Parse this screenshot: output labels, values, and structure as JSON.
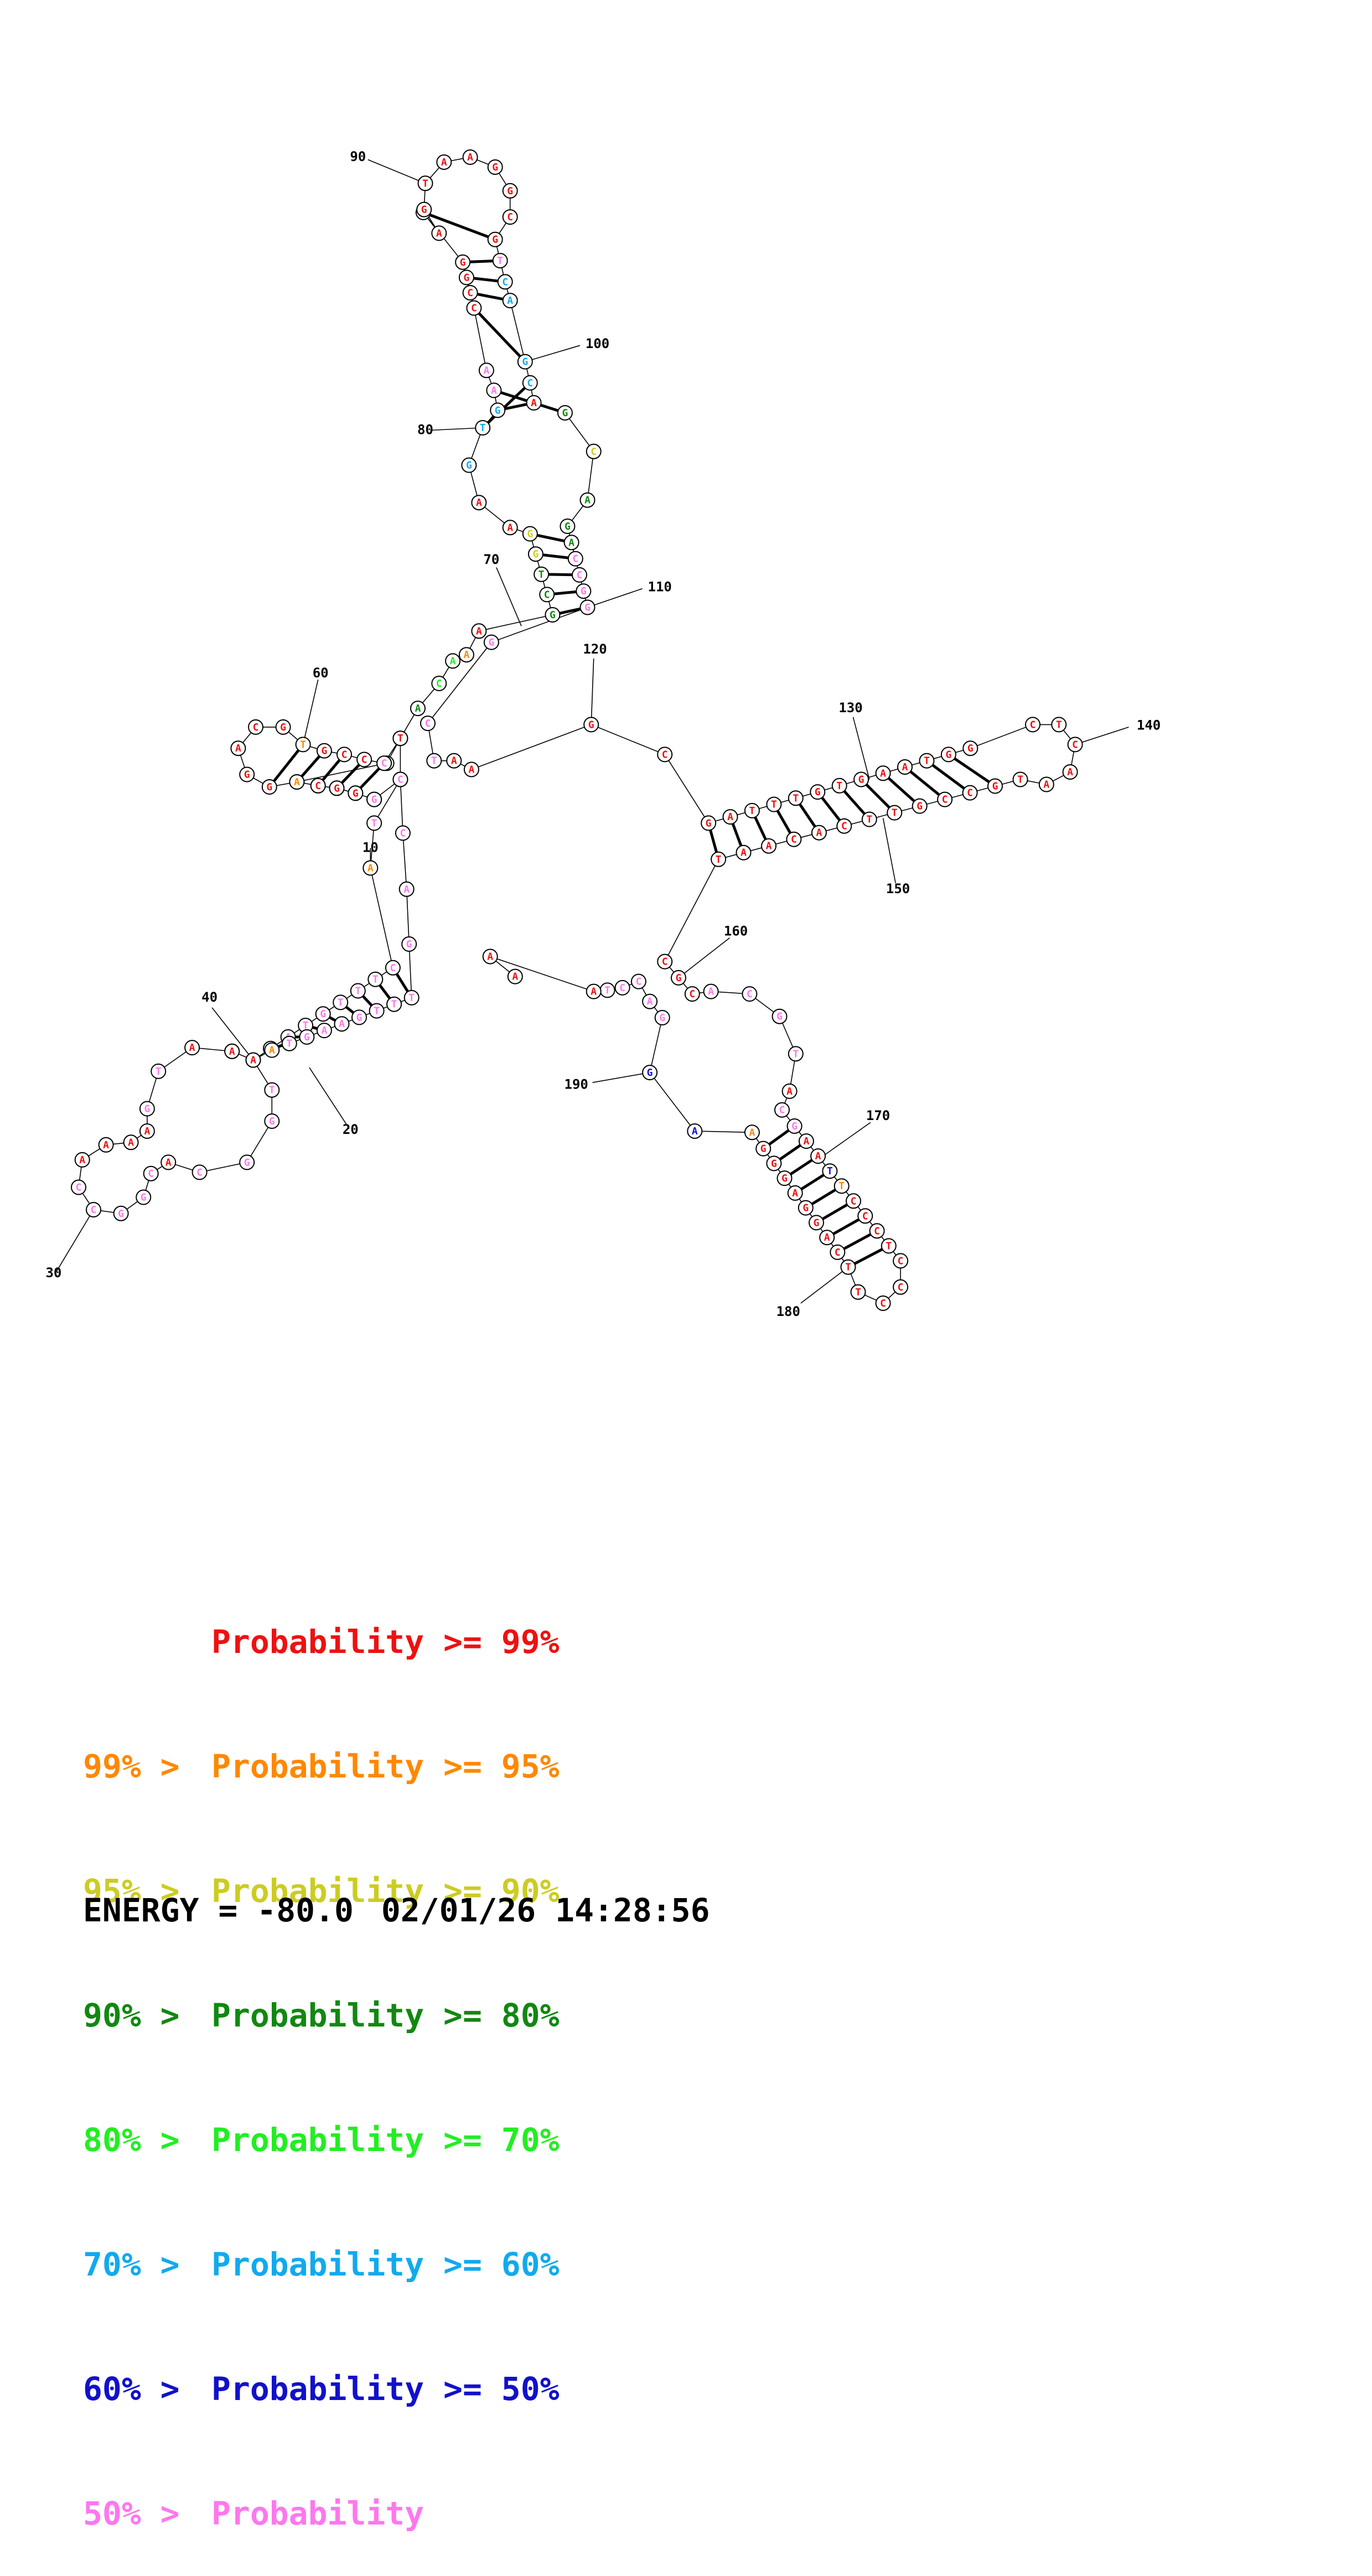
{
  "palette": {
    "red": "#ee1111",
    "orange": "#ff8800",
    "yellow": "#cccc22",
    "dkgreen": "#118811",
    "green": "#22ee22",
    "cyan": "#11aaee",
    "blue": "#1111cc",
    "pink": "#ff77ee"
  },
  "nucleotides": [
    {
      "b": "G",
      "c": "red"
    },
    {
      "b": "G",
      "c": "red"
    },
    {
      "b": "C",
      "c": "red"
    },
    {
      "b": "C",
      "c": "red"
    },
    {
      "b": "G",
      "c": "red"
    },
    {
      "b": "C",
      "c": "red"
    },
    {
      "b": "G",
      "c": "red"
    },
    {
      "b": "G",
      "c": "pink"
    },
    {
      "b": "T",
      "c": "pink"
    },
    {
      "b": "A",
      "c": "orange"
    },
    {
      "b": "C",
      "c": "pink"
    },
    {
      "b": "T",
      "c": "pink"
    },
    {
      "b": "T",
      "c": "pink"
    },
    {
      "b": "T",
      "c": "pink"
    },
    {
      "b": "G",
      "c": "pink"
    },
    {
      "b": "T",
      "c": "pink"
    },
    {
      "b": "A",
      "c": "pink"
    },
    {
      "b": "A",
      "c": "pink"
    },
    {
      "b": "T",
      "c": "pink"
    },
    {
      "b": "T",
      "c": "pink"
    },
    {
      "b": "G",
      "c": "pink"
    },
    {
      "b": "G",
      "c": "pink"
    },
    {
      "b": "C",
      "c": "pink"
    },
    {
      "b": "A",
      "c": "red"
    },
    {
      "b": "C",
      "c": "pink"
    },
    {
      "b": "G",
      "c": "pink"
    },
    {
      "b": "G",
      "c": "pink"
    },
    {
      "b": "C",
      "c": "pink"
    },
    {
      "b": "C",
      "c": "pink"
    },
    {
      "b": "A",
      "c": "red"
    },
    {
      "b": "A",
      "c": "red"
    },
    {
      "b": "A",
      "c": "red"
    },
    {
      "b": "A",
      "c": "red"
    },
    {
      "b": "G",
      "c": "pink"
    },
    {
      "b": "T",
      "c": "pink"
    },
    {
      "b": "A",
      "c": "red"
    },
    {
      "b": "A",
      "c": "red"
    },
    {
      "b": "A",
      "c": "red"
    },
    {
      "b": "A",
      "c": "red"
    },
    {
      "b": "A",
      "c": "orange"
    },
    {
      "b": "T",
      "c": "pink"
    },
    {
      "b": "G",
      "c": "pink"
    },
    {
      "b": "A",
      "c": "pink"
    },
    {
      "b": "A",
      "c": "pink"
    },
    {
      "b": "G",
      "c": "pink"
    },
    {
      "b": "T",
      "c": "pink"
    },
    {
      "b": "T",
      "c": "pink"
    },
    {
      "b": "T",
      "c": "pink"
    },
    {
      "b": "G",
      "c": "pink"
    },
    {
      "b": "A",
      "c": "pink"
    },
    {
      "b": "C",
      "c": "pink"
    },
    {
      "b": "C",
      "c": "pink"
    },
    {
      "b": "G",
      "c": "pink"
    },
    {
      "b": "G",
      "c": "red"
    },
    {
      "b": "G",
      "c": "red"
    },
    {
      "b": "C",
      "c": "red"
    },
    {
      "b": "A",
      "c": "orange"
    },
    {
      "b": "G",
      "c": "red"
    },
    {
      "b": "G",
      "c": "red"
    },
    {
      "b": "A",
      "c": "red"
    },
    {
      "b": "C",
      "c": "red"
    },
    {
      "b": "G",
      "c": "red"
    },
    {
      "b": "T",
      "c": "orange"
    },
    {
      "b": "G",
      "c": "red"
    },
    {
      "b": "C",
      "c": "red"
    },
    {
      "b": "C",
      "c": "red"
    },
    {
      "b": "C",
      "c": "pink"
    },
    {
      "b": "T",
      "c": "red"
    },
    {
      "b": "A",
      "c": "dkgreen"
    },
    {
      "b": "C",
      "c": "green"
    },
    {
      "b": "A",
      "c": "green"
    },
    {
      "b": "A",
      "c": "orange"
    },
    {
      "b": "A",
      "c": "red"
    },
    {
      "b": "G",
      "c": "dkgreen"
    },
    {
      "b": "C",
      "c": "dkgreen"
    },
    {
      "b": "T",
      "c": "dkgreen"
    },
    {
      "b": "G",
      "c": "yellow"
    },
    {
      "b": "G",
      "c": "yellow"
    },
    {
      "b": "A",
      "c": "red"
    },
    {
      "b": "A",
      "c": "red"
    },
    {
      "b": "G",
      "c": "cyan"
    },
    {
      "b": "T",
      "c": "cyan"
    },
    {
      "b": "G",
      "c": "cyan"
    },
    {
      "b": "A",
      "c": "pink"
    },
    {
      "b": "A",
      "c": "pink"
    },
    {
      "b": "C",
      "c": "red"
    },
    {
      "b": "C",
      "c": "red"
    },
    {
      "b": "G",
      "c": "red"
    },
    {
      "b": "G",
      "c": "red"
    },
    {
      "b": "C",
      "c": "red"
    },
    {
      "b": "A",
      "c": "red"
    },
    {
      "b": "G",
      "c": "red"
    },
    {
      "b": "T",
      "c": "red"
    },
    {
      "b": "A",
      "c": "red"
    },
    {
      "b": "A",
      "c": "red"
    },
    {
      "b": "G",
      "c": "red"
    },
    {
      "b": "G",
      "c": "red"
    },
    {
      "b": "C",
      "c": "red"
    },
    {
      "b": "G",
      "c": "red"
    },
    {
      "b": "T",
      "c": "pink"
    },
    {
      "b": "C",
      "c": "cyan"
    },
    {
      "b": "A",
      "c": "cyan"
    },
    {
      "b": "G",
      "c": "cyan"
    },
    {
      "b": "C",
      "c": "cyan"
    },
    {
      "b": "A",
      "c": "red"
    },
    {
      "b": "G",
      "c": "dkgreen"
    },
    {
      "b": "C",
      "c": "yellow"
    },
    {
      "b": "A",
      "c": "dkgreen"
    },
    {
      "b": "G",
      "c": "dkgreen"
    },
    {
      "b": "A",
      "c": "dkgreen"
    },
    {
      "b": "C",
      "c": "pink"
    },
    {
      "b": "C",
      "c": "pink"
    },
    {
      "b": "G",
      "c": "pink"
    },
    {
      "b": "G",
      "c": "pink"
    },
    {
      "b": "G",
      "c": "pink"
    },
    {
      "b": "C",
      "c": "pink"
    },
    {
      "b": "T",
      "c": "pink"
    },
    {
      "b": "A",
      "c": "red"
    },
    {
      "b": "A",
      "c": "red"
    },
    {
      "b": "G",
      "c": "red"
    },
    {
      "b": "C",
      "c": "red"
    },
    {
      "b": "G",
      "c": "red"
    },
    {
      "b": "A",
      "c": "red"
    },
    {
      "b": "T",
      "c": "red"
    },
    {
      "b": "T",
      "c": "red"
    },
    {
      "b": "T",
      "c": "red"
    },
    {
      "b": "G",
      "c": "red"
    },
    {
      "b": "T",
      "c": "red"
    },
    {
      "b": "G",
      "c": "red"
    },
    {
      "b": "A",
      "c": "red"
    },
    {
      "b": "A",
      "c": "red"
    },
    {
      "b": "T",
      "c": "red"
    },
    {
      "b": "G",
      "c": "red"
    },
    {
      "b": "G",
      "c": "red"
    },
    {
      "b": "C",
      "c": "red"
    },
    {
      "b": "T",
      "c": "red"
    },
    {
      "b": "C",
      "c": "red"
    },
    {
      "b": "A",
      "c": "red"
    },
    {
      "b": "A",
      "c": "red"
    },
    {
      "b": "T",
      "c": "red"
    },
    {
      "b": "G",
      "c": "red"
    },
    {
      "b": "C",
      "c": "red"
    },
    {
      "b": "C",
      "c": "red"
    },
    {
      "b": "G",
      "c": "red"
    },
    {
      "b": "T",
      "c": "red"
    },
    {
      "b": "T",
      "c": "red"
    },
    {
      "b": "C",
      "c": "red"
    },
    {
      "b": "A",
      "c": "red"
    },
    {
      "b": "C",
      "c": "red"
    },
    {
      "b": "A",
      "c": "red"
    },
    {
      "b": "A",
      "c": "red"
    },
    {
      "b": "T",
      "c": "red"
    },
    {
      "b": "C",
      "c": "red"
    },
    {
      "b": "G",
      "c": "red"
    },
    {
      "b": "C",
      "c": "red"
    },
    {
      "b": "A",
      "c": "pink"
    },
    {
      "b": "C",
      "c": "pink"
    },
    {
      "b": "G",
      "c": "pink"
    },
    {
      "b": "T",
      "c": "pink"
    },
    {
      "b": "A",
      "c": "red"
    },
    {
      "b": "C",
      "c": "pink"
    },
    {
      "b": "G",
      "c": "pink"
    },
    {
      "b": "A",
      "c": "red"
    },
    {
      "b": "A",
      "c": "red"
    },
    {
      "b": "T",
      "c": "blue"
    },
    {
      "b": "T",
      "c": "orange"
    },
    {
      "b": "C",
      "c": "red"
    },
    {
      "b": "C",
      "c": "red"
    },
    {
      "b": "C",
      "c": "red"
    },
    {
      "b": "T",
      "c": "red"
    },
    {
      "b": "C",
      "c": "red"
    },
    {
      "b": "C",
      "c": "red"
    },
    {
      "b": "C",
      "c": "red"
    },
    {
      "b": "T",
      "c": "red"
    },
    {
      "b": "T",
      "c": "red"
    },
    {
      "b": "C",
      "c": "red"
    },
    {
      "b": "A",
      "c": "red"
    },
    {
      "b": "G",
      "c": "red"
    },
    {
      "b": "G",
      "c": "red"
    },
    {
      "b": "A",
      "c": "red"
    },
    {
      "b": "G",
      "c": "red"
    },
    {
      "b": "G",
      "c": "red"
    },
    {
      "b": "G",
      "c": "red"
    },
    {
      "b": "A",
      "c": "orange"
    },
    {
      "b": "A",
      "c": "blue"
    },
    {
      "b": "G",
      "c": "blue"
    },
    {
      "b": "G",
      "c": "pink"
    },
    {
      "b": "A",
      "c": "pink"
    },
    {
      "b": "C",
      "c": "pink"
    },
    {
      "b": "C",
      "c": "pink"
    },
    {
      "b": "T",
      "c": "pink"
    },
    {
      "b": "A",
      "c": "red"
    },
    {
      "b": "A",
      "c": "red"
    },
    {
      "b": "A",
      "c": "red"
    }
  ],
  "index_labels": [
    "10",
    "20",
    "30",
    "40",
    "60",
    "70",
    "80",
    "90",
    "100",
    "110",
    "120",
    "130",
    "140",
    "150",
    "160",
    "170",
    "180",
    "190"
  ],
  "legend": [
    {
      "left": "",
      "right": "Probability >= 99%",
      "c": "red"
    },
    {
      "left": "99% > ",
      "right": "Probability >= 95%",
      "c": "orange"
    },
    {
      "left": "95% > ",
      "right": "Probability >= 90%",
      "c": "yellow"
    },
    {
      "left": "90% > ",
      "right": "Probability >= 80%",
      "c": "dkgreen"
    },
    {
      "left": "80% > ",
      "right": "Probability >= 70%",
      "c": "green"
    },
    {
      "left": "70% > ",
      "right": "Probability >= 60%",
      "c": "cyan"
    },
    {
      "left": "60% > ",
      "right": "Probability >= 50%",
      "c": "blue"
    },
    {
      "left": "50% > ",
      "right": "Probability",
      "c": "pink"
    }
  ],
  "energy": {
    "label": "ENERGY = -80.0",
    "timestamp": "02/01/26 14:28:56"
  }
}
